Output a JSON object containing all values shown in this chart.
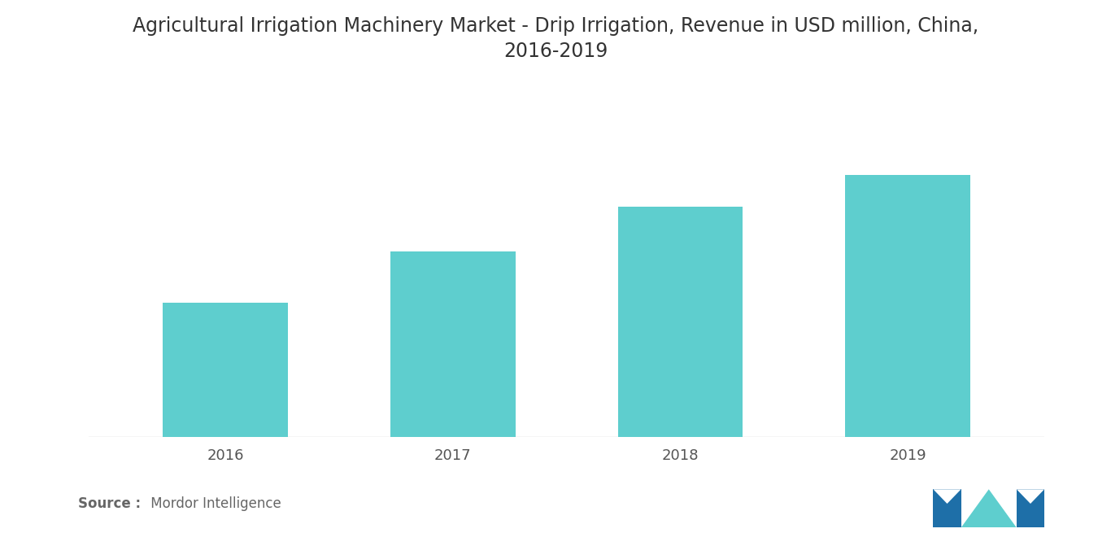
{
  "categories": [
    "2016",
    "2017",
    "2018",
    "2019"
  ],
  "values": [
    42,
    58,
    72,
    82
  ],
  "bar_color": "#5ECECE",
  "title_line1": "Agricultural Irrigation Machinery Market - Drip Irrigation, Revenue in USD million, China,",
  "title_line2": "2016-2019",
  "title_fontsize": 17,
  "tick_label_fontsize": 13,
  "background_color": "#ffffff",
  "source_bold": "Source :",
  "source_text": " Mordor Intelligence",
  "source_fontsize": 12,
  "ylim": [
    0,
    100
  ],
  "bar_width": 0.55,
  "title_color": "#333333",
  "tick_color": "#555555",
  "source_color": "#666666",
  "axhline_color": "#cccccc",
  "logo_left_color": "#1e6fa8",
  "logo_mid_color": "#5ECECE",
  "logo_right_color": "#1e6fa8"
}
